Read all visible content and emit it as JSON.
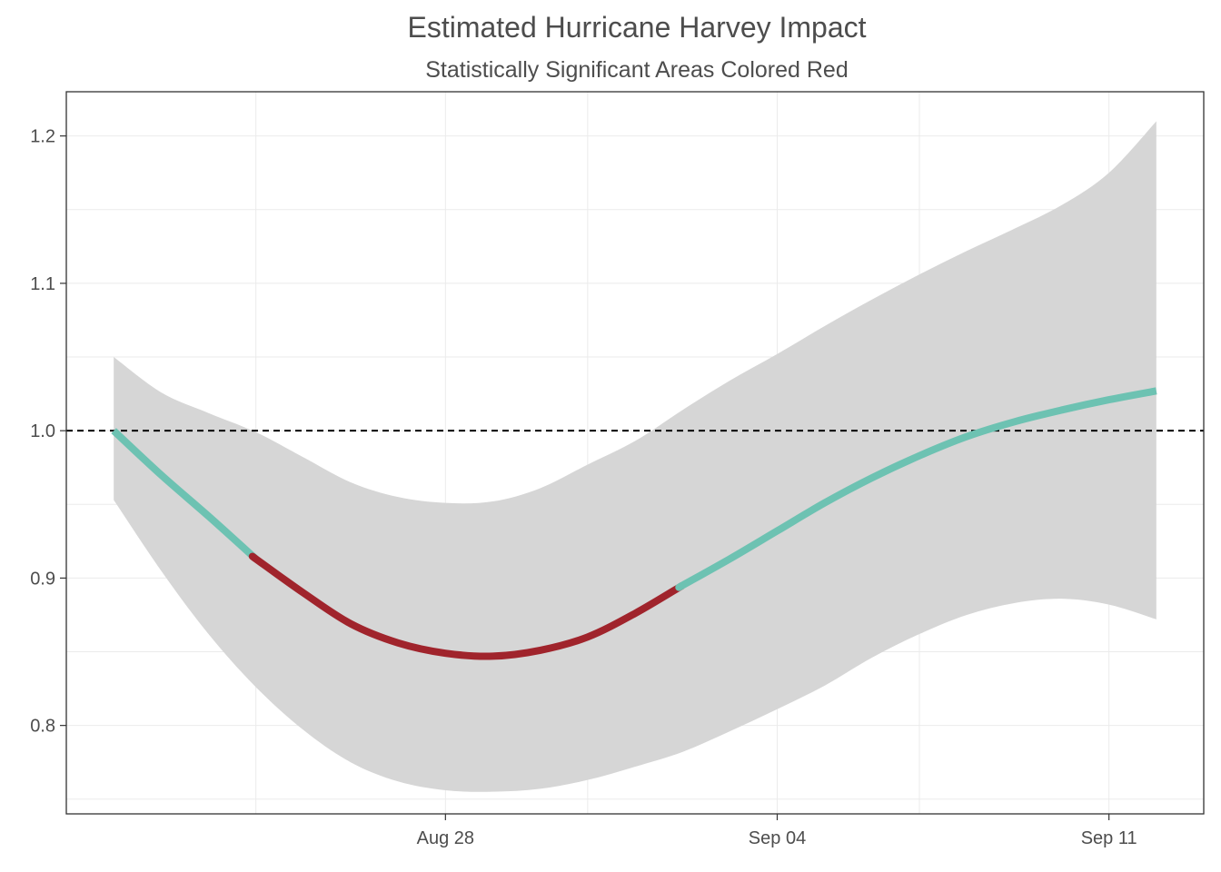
{
  "chart_data": {
    "type": "line",
    "title": "Estimated Hurricane Harvey Impact",
    "subtitle": "Statistically Significant Areas Colored Red",
    "xlabel": "",
    "ylabel": "",
    "x_start": "2017-08-21",
    "x_end": "2017-09-12",
    "xlim": [
      "2017-08-20",
      "2017-09-13"
    ],
    "ylim": [
      0.74,
      1.23
    ],
    "x_ticks": [
      {
        "date": "2017-08-28",
        "label": "Aug 28"
      },
      {
        "date": "2017-09-04",
        "label": "Sep 04"
      },
      {
        "date": "2017-09-11",
        "label": "Sep 11"
      }
    ],
    "y_ticks": [
      {
        "value": 0.8,
        "label": "0.8"
      },
      {
        "value": 0.9,
        "label": "0.9"
      },
      {
        "value": 1.0,
        "label": "1.0"
      },
      {
        "value": 1.1,
        "label": "1.1"
      },
      {
        "value": 1.2,
        "label": "1.2"
      }
    ],
    "reference_line": {
      "value": 1.0,
      "style": "dashed"
    },
    "significant_range": [
      "2017-08-24",
      "2017-09-01"
    ],
    "grid": true,
    "legend": "none",
    "x": [
      "2017-08-21",
      "2017-08-22",
      "2017-08-23",
      "2017-08-24",
      "2017-08-25",
      "2017-08-26",
      "2017-08-27",
      "2017-08-28",
      "2017-08-29",
      "2017-08-30",
      "2017-08-31",
      "2017-09-01",
      "2017-09-02",
      "2017-09-03",
      "2017-09-04",
      "2017-09-05",
      "2017-09-06",
      "2017-09-07",
      "2017-09-08",
      "2017-09-09",
      "2017-09-10",
      "2017-09-11",
      "2017-09-12"
    ],
    "estimate": [
      1.0,
      0.97,
      0.942,
      0.913,
      0.89,
      0.869,
      0.856,
      0.849,
      0.847,
      0.851,
      0.86,
      0.876,
      0.895,
      0.913,
      0.932,
      0.951,
      0.968,
      0.983,
      0.996,
      1.006,
      1.014,
      1.021,
      1.027
    ],
    "lower": [
      0.953,
      0.905,
      0.862,
      0.826,
      0.797,
      0.775,
      0.762,
      0.756,
      0.755,
      0.757,
      0.763,
      0.772,
      0.782,
      0.796,
      0.811,
      0.827,
      0.846,
      0.862,
      0.875,
      0.883,
      0.886,
      0.882,
      0.872
    ],
    "upper": [
      1.05,
      1.026,
      1.012,
      0.999,
      0.982,
      0.965,
      0.955,
      0.951,
      0.952,
      0.961,
      0.977,
      0.993,
      1.014,
      1.034,
      1.052,
      1.071,
      1.089,
      1.106,
      1.122,
      1.137,
      1.153,
      1.175,
      1.21
    ],
    "colors": {
      "line": "#6dc2b2",
      "significant": "#a0242c",
      "ribbon": "#d6d6d6",
      "reference": "#000000",
      "panel_border": "#333333"
    }
  }
}
